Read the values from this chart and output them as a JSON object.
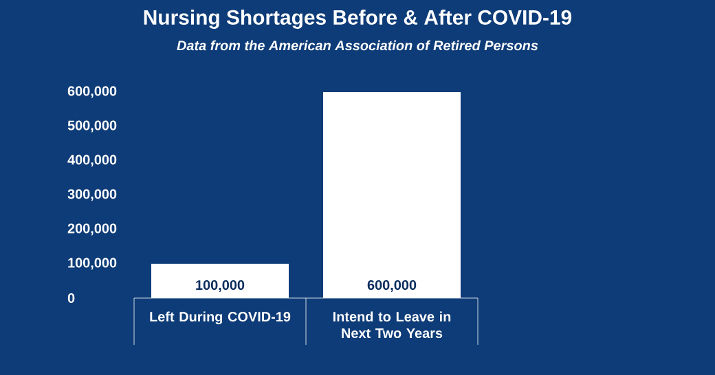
{
  "chart_data": {
    "type": "bar",
    "title": "Nursing Shortages Before & After COVID-19",
    "subtitle": "Data from the American Association of Retired Persons",
    "categories": [
      "Left During COVID-19",
      "Intend to Leave in Next Two Years"
    ],
    "values": [
      100000,
      600000
    ],
    "value_labels": [
      "100,000",
      "600,000"
    ],
    "color": "#ffffff",
    "ylim": [
      0,
      600000
    ],
    "yticks": [
      {
        "value": 0,
        "label": "0"
      },
      {
        "value": 100000,
        "label": "100,000"
      },
      {
        "value": 200000,
        "label": "200,000"
      },
      {
        "value": 300000,
        "label": "300,000"
      },
      {
        "value": 400000,
        "label": "400,000"
      },
      {
        "value": 500000,
        "label": "500,000"
      },
      {
        "value": 600000,
        "label": "600,000"
      }
    ]
  }
}
